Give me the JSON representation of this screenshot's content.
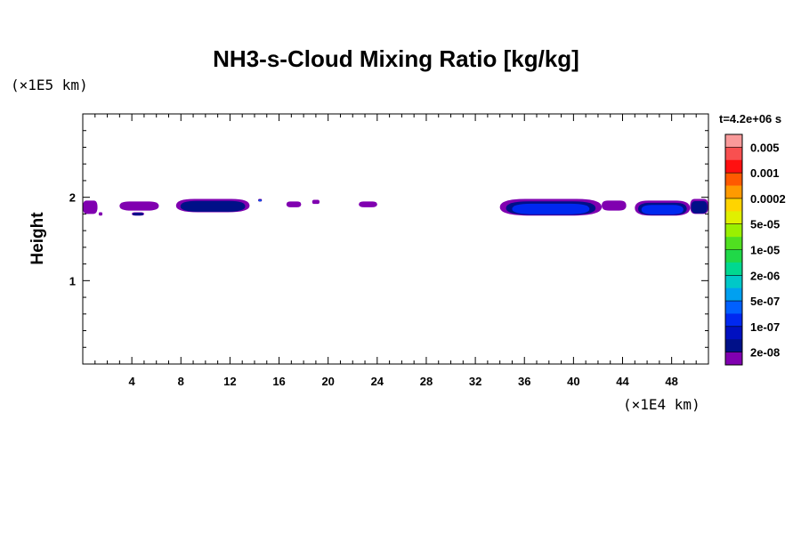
{
  "chart_data": {
    "type": "heatmap",
    "title": "NH3-s-Cloud Mixing Ratio [kg/kg]",
    "ylabel": "Height",
    "x_scale_label": "(×1E4 km)",
    "y_scale_label": "(×1E5 km)",
    "time_label": "t=4.2e+06 s",
    "xlim": [
      0,
      51
    ],
    "ylim": [
      0,
      3
    ],
    "x_ticks": [
      "4",
      "8",
      "12",
      "16",
      "20",
      "24",
      "28",
      "32",
      "36",
      "40",
      "44",
      "48"
    ],
    "x_tick_values": [
      4,
      8,
      12,
      16,
      20,
      24,
      28,
      32,
      36,
      40,
      44,
      48
    ],
    "y_ticks": [
      "1",
      "2"
    ],
    "y_tick_values": [
      1,
      2
    ],
    "colorbar": {
      "labels": [
        "0.005",
        "0.001",
        "0.0002",
        "5e-05",
        "1e-05",
        "2e-06",
        "5e-07",
        "1e-07",
        "2e-08"
      ],
      "colors": [
        "#fa9a9a",
        "#f85050",
        "#ff1010",
        "#ff5a00",
        "#ff9a00",
        "#ffd400",
        "#e0f000",
        "#9af000",
        "#50e020",
        "#20d848",
        "#00d890",
        "#00c8c8",
        "#00a0f0",
        "#0060ff",
        "#0028f0",
        "#0010c0",
        "#001088",
        "#8000b0"
      ]
    },
    "cloud_patches": [
      {
        "x0": 0.0,
        "x1": 1.2,
        "yt": 1.96,
        "yb": 1.8,
        "lvl": 8
      },
      {
        "x0": 1.3,
        "x1": 1.6,
        "yt": 1.82,
        "yb": 1.78,
        "lvl": 8
      },
      {
        "x0": 3.0,
        "x1": 6.2,
        "yt": 1.95,
        "yb": 1.84,
        "lvl": 8
      },
      {
        "x0": 4.0,
        "x1": 5.0,
        "yt": 1.82,
        "yb": 1.78,
        "lvl": 9
      },
      {
        "x0": 7.6,
        "x1": 13.6,
        "yt": 1.98,
        "yb": 1.82,
        "lvl": 9
      },
      {
        "x0": 14.3,
        "x1": 14.6,
        "yt": 1.98,
        "yb": 1.95,
        "lvl": 11
      },
      {
        "x0": 16.6,
        "x1": 17.8,
        "yt": 1.95,
        "yb": 1.88,
        "lvl": 8
      },
      {
        "x0": 18.7,
        "x1": 19.3,
        "yt": 1.97,
        "yb": 1.92,
        "lvl": 8
      },
      {
        "x0": 22.5,
        "x1": 24.0,
        "yt": 1.95,
        "yb": 1.88,
        "lvl": 8
      },
      {
        "x0": 34.0,
        "x1": 42.3,
        "yt": 1.98,
        "yb": 1.78,
        "lvl": 10
      },
      {
        "x0": 42.3,
        "x1": 44.3,
        "yt": 1.96,
        "yb": 1.84,
        "lvl": 8
      },
      {
        "x0": 45.0,
        "x1": 49.5,
        "yt": 1.96,
        "yb": 1.78,
        "lvl": 10
      },
      {
        "x0": 49.5,
        "x1": 51.0,
        "yt": 1.98,
        "yb": 1.8,
        "lvl": 9
      }
    ]
  }
}
